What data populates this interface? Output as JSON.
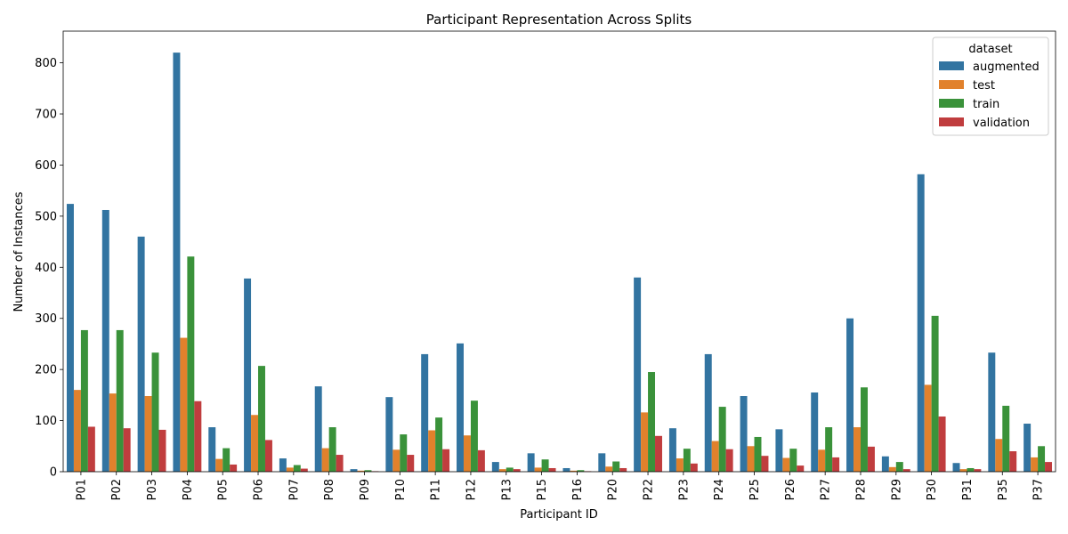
{
  "chart_data": {
    "type": "bar",
    "title": "Participant Representation Across Splits",
    "xlabel": "Participant ID",
    "ylabel": "Number of Instances",
    "ylim": [
      0,
      862
    ],
    "yticks": [
      0,
      100,
      200,
      300,
      400,
      500,
      600,
      700,
      800
    ],
    "grid": false,
    "legend": {
      "title": "dataset",
      "placement": "top-right"
    },
    "categories": [
      "P01",
      "P02",
      "P03",
      "P04",
      "P05",
      "P06",
      "P07",
      "P08",
      "P09",
      "P10",
      "P11",
      "P12",
      "P13",
      "P15",
      "P16",
      "P20",
      "P22",
      "P23",
      "P24",
      "P25",
      "P26",
      "P27",
      "P28",
      "P29",
      "P30",
      "P31",
      "P35",
      "P37"
    ],
    "series": [
      {
        "name": "augmented",
        "color": "#3274a1",
        "values": [
          524,
          512,
          460,
          820,
          87,
          378,
          26,
          167,
          5,
          146,
          230,
          251,
          19,
          36,
          7,
          36,
          380,
          85,
          230,
          148,
          83,
          155,
          300,
          30,
          582,
          17,
          233,
          94
        ]
      },
      {
        "name": "test",
        "color": "#e1812c",
        "values": [
          160,
          153,
          148,
          262,
          25,
          111,
          8,
          46,
          2,
          43,
          81,
          71,
          5,
          8,
          2,
          10,
          116,
          26,
          60,
          50,
          27,
          43,
          87,
          9,
          170,
          5,
          64,
          28
        ]
      },
      {
        "name": "train",
        "color": "#3a923a",
        "values": [
          277,
          277,
          233,
          421,
          46,
          207,
          13,
          87,
          3,
          73,
          106,
          139,
          8,
          24,
          3,
          20,
          195,
          45,
          127,
          68,
          45,
          87,
          165,
          19,
          305,
          7,
          129,
          50
        ]
      },
      {
        "name": "validation",
        "color": "#c03d3e",
        "values": [
          88,
          85,
          82,
          138,
          14,
          62,
          6,
          33,
          1,
          33,
          44,
          42,
          5,
          7,
          1,
          7,
          70,
          16,
          44,
          31,
          12,
          28,
          49,
          5,
          108,
          5,
          40,
          19
        ]
      }
    ]
  }
}
